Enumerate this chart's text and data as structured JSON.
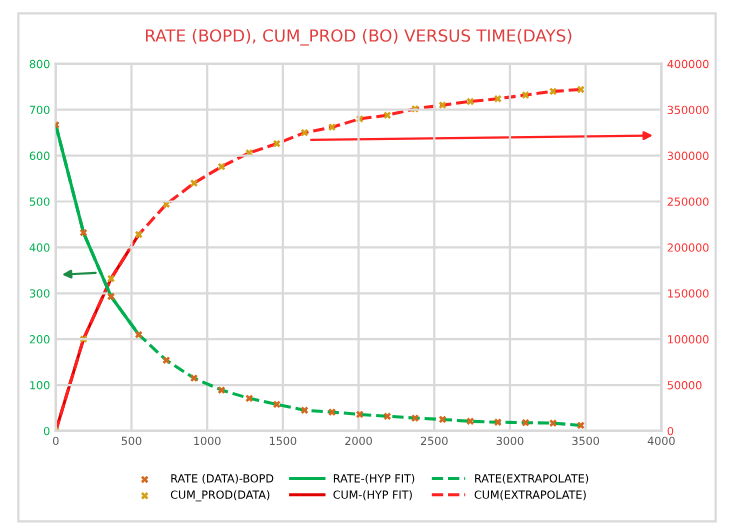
{
  "chart_data": {
    "type": "line",
    "title": "RATE (BOPD), CUM_PROD (BO) VERSUS TIME(DAYS)",
    "xlim": [
      0,
      4000
    ],
    "xticks": [
      0,
      500,
      1000,
      1500,
      2000,
      2500,
      3000,
      3500,
      4000
    ],
    "ylim": [
      0,
      800
    ],
    "yticks": [
      0,
      100,
      200,
      300,
      400,
      500,
      600,
      700,
      800
    ],
    "y2lim": [
      0,
      400000
    ],
    "y2ticks": [
      0,
      50000,
      100000,
      150000,
      200000,
      250000,
      300000,
      350000,
      400000
    ],
    "grid": true,
    "legend": "bottom",
    "series": [
      {
        "name": "RATE (DATA)-BOPD",
        "type": "scatter",
        "marker": "cross",
        "color": "#d2691e",
        "x": [
          0,
          183,
          365,
          548,
          730,
          913,
          1095,
          1278,
          1460,
          1643,
          1825,
          2008,
          2190,
          2373,
          2555,
          2738,
          2920,
          3103,
          3285,
          3468
        ],
        "values": [
          667,
          432,
          293,
          210,
          154,
          115,
          89,
          71,
          58,
          45,
          41,
          36,
          32,
          28,
          25,
          21,
          19,
          18,
          17,
          12
        ]
      },
      {
        "name": "CUM_PROD(DATA)",
        "type": "scatter",
        "marker": "cross",
        "color": "#d4a017",
        "axis": "y2",
        "x": [
          0,
          183,
          365,
          548,
          730,
          913,
          1095,
          1278,
          1460,
          1643,
          1825,
          2008,
          2190,
          2373,
          2555,
          2738,
          2920,
          3103,
          3285,
          3468
        ],
        "values": [
          0,
          100000,
          166000,
          214000,
          247000,
          270000,
          288000,
          303000,
          313000,
          325000,
          331000,
          340000,
          344000,
          351000,
          355000,
          359000,
          362000,
          366000,
          370000,
          372000
        ]
      },
      {
        "name": "RATE-(HYP FIT)",
        "line_style": "solid",
        "color": "#00b050",
        "x": [
          0,
          183,
          365,
          548
        ],
        "values": [
          667,
          432,
          293,
          210
        ]
      },
      {
        "name": "CUM-(HYP FIT)",
        "line_style": "solid",
        "color": "#e00000",
        "axis": "y2",
        "x": [
          0,
          183,
          365,
          548
        ],
        "values": [
          0,
          100000,
          166000,
          214000
        ]
      },
      {
        "name": "RATE(EXTRAPOLATE)",
        "line_style": "dashed",
        "color": "#00b050",
        "x": [
          0,
          183,
          365,
          548,
          730,
          913,
          1095,
          1278,
          1460,
          1643,
          1825,
          2008,
          2190,
          2373,
          2555,
          2738,
          2920,
          3103,
          3285,
          3468
        ],
        "values": [
          667,
          432,
          293,
          210,
          154,
          115,
          89,
          71,
          58,
          45,
          41,
          36,
          32,
          28,
          25,
          21,
          19,
          18,
          17,
          12
        ]
      },
      {
        "name": "CUM(EXTRAPOLATE)",
        "line_style": "dashed",
        "color": "#ff2020",
        "axis": "y2",
        "x": [
          0,
          183,
          365,
          548,
          730,
          913,
          1095,
          1278,
          1460,
          1643,
          1825,
          2008,
          2190,
          2373,
          2555,
          2738,
          2920,
          3103,
          3285,
          3468
        ],
        "values": [
          0,
          100000,
          166000,
          214000,
          247000,
          270000,
          288000,
          303000,
          313000,
          325000,
          331000,
          340000,
          344000,
          351000,
          355000,
          359000,
          362000,
          366000,
          370000,
          372000
        ]
      }
    ]
  }
}
